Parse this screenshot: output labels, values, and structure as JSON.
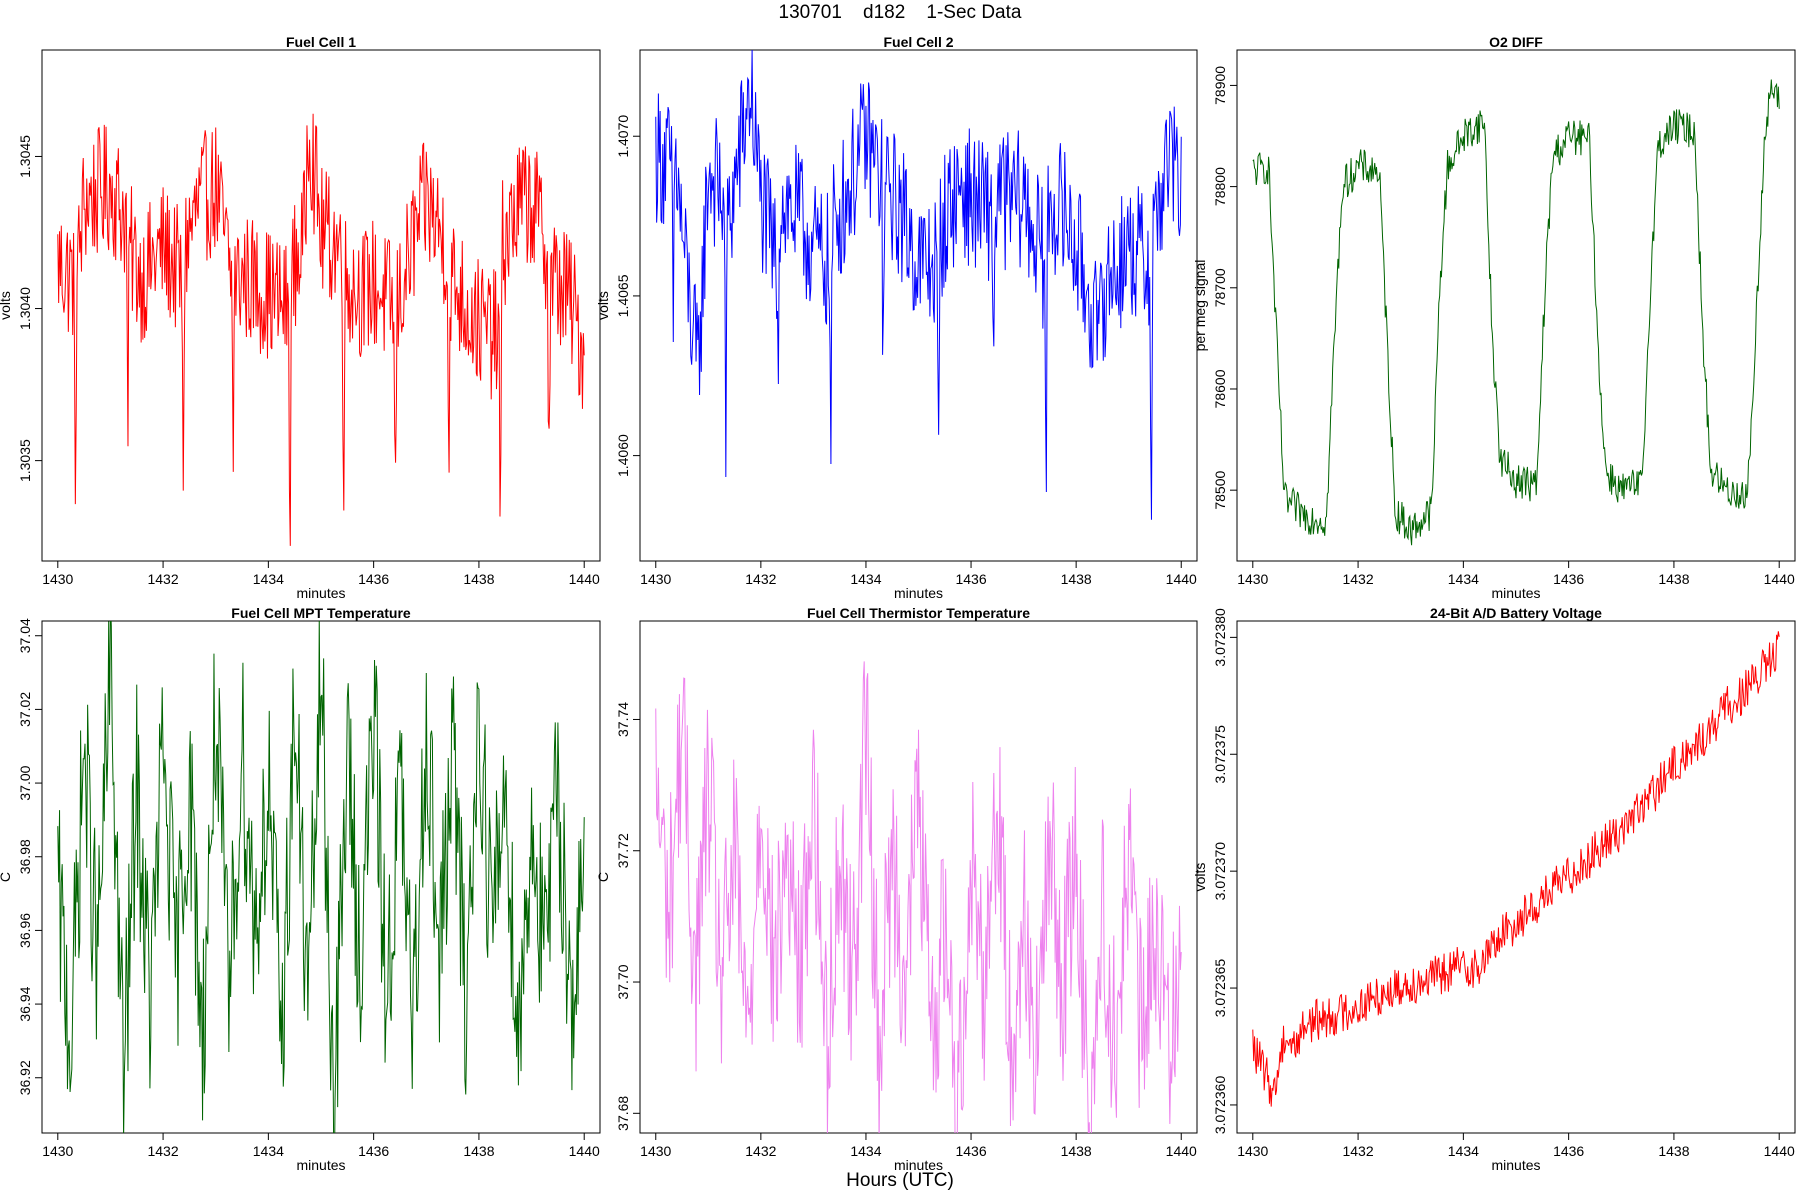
{
  "page": {
    "title": "130701    d182    1-Sec Data",
    "xlabel_overall": "Hours (UTC)"
  },
  "chart_data": [
    {
      "type": "line",
      "title": "Fuel Cell 1",
      "xlabel": "minutes",
      "ylabel": "volts",
      "color": "#ff0000",
      "xlim": [
        1429.7,
        1440.3
      ],
      "ylim": [
        1.30317,
        1.30485
      ],
      "xticks": [
        1430,
        1432,
        1434,
        1436,
        1438,
        1440
      ],
      "yticks": [
        {
          "v": 1.3035,
          "label": "1.3035"
        },
        {
          "v": 1.304,
          "label": "1.3040"
        },
        {
          "v": 1.3045,
          "label": "1.3045"
        }
      ],
      "x": [
        1430.0,
        1430.3,
        1430.33,
        1430.36,
        1430.5,
        1431.0,
        1431.3,
        1431.33,
        1431.36,
        1431.6,
        1432.0,
        1432.35,
        1432.38,
        1432.41,
        1432.7,
        1433.0,
        1433.3,
        1433.33,
        1433.36,
        1433.6,
        1434.0,
        1434.38,
        1434.41,
        1434.44,
        1434.7,
        1434.75,
        1435.0,
        1435.4,
        1435.43,
        1435.46,
        1435.8,
        1436.0,
        1436.38,
        1436.41,
        1436.44,
        1436.8,
        1437.0,
        1437.4,
        1437.43,
        1437.46,
        1437.8,
        1438.0,
        1438.38,
        1438.41,
        1438.44,
        1438.8,
        1439.0,
        1439.3,
        1439.33,
        1439.36,
        1439.7,
        1440.0
      ],
      "y": [
        1.30415,
        1.3041,
        1.30335,
        1.3041,
        1.30435,
        1.3044,
        1.3043,
        1.30357,
        1.3042,
        1.3041,
        1.3042,
        1.3041,
        1.30335,
        1.3042,
        1.30435,
        1.3044,
        1.3041,
        1.30352,
        1.3041,
        1.3041,
        1.30405,
        1.304,
        1.30325,
        1.3041,
        1.30425,
        1.30465,
        1.30425,
        1.3042,
        1.30345,
        1.3041,
        1.30405,
        1.30408,
        1.304,
        1.30323,
        1.304,
        1.30425,
        1.30435,
        1.3042,
        1.30338,
        1.3041,
        1.304,
        1.30395,
        1.3039,
        1.30318,
        1.3042,
        1.30435,
        1.30435,
        1.3042,
        1.30342,
        1.3041,
        1.30405,
        1.30385
      ]
    },
    {
      "type": "line",
      "title": "Fuel Cell 2",
      "xlabel": "minutes",
      "ylabel": "volts",
      "color": "#0000ff",
      "xlim": [
        1429.7,
        1440.3
      ],
      "ylim": [
        1.40567,
        1.40727
      ],
      "xticks": [
        1430,
        1432,
        1434,
        1436,
        1438,
        1440
      ],
      "yticks": [
        {
          "v": 1.406,
          "label": "1.4060"
        },
        {
          "v": 1.4065,
          "label": "1.4065"
        },
        {
          "v": 1.407,
          "label": "1.4070"
        }
      ],
      "x": [
        1430.0,
        1430.3,
        1430.33,
        1430.36,
        1430.5,
        1430.8,
        1431.0,
        1431.3,
        1431.33,
        1431.36,
        1431.8,
        1432.0,
        1432.3,
        1432.33,
        1432.36,
        1432.7,
        1433.0,
        1433.3,
        1433.33,
        1433.36,
        1433.7,
        1434.0,
        1434.3,
        1434.33,
        1434.36,
        1434.7,
        1435.0,
        1435.35,
        1435.38,
        1435.41,
        1435.8,
        1436.0,
        1436.4,
        1436.43,
        1436.46,
        1436.8,
        1437.0,
        1437.4,
        1437.43,
        1437.46,
        1437.8,
        1438.0,
        1438.4,
        1438.43,
        1438.46,
        1438.8,
        1439.0,
        1439.4,
        1439.43,
        1439.46,
        1439.8,
        1440.0
      ],
      "y": [
        1.40695,
        1.4069,
        1.40635,
        1.40695,
        1.4067,
        1.40625,
        1.4069,
        1.4068,
        1.40598,
        1.4067,
        1.40715,
        1.4068,
        1.4066,
        1.40635,
        1.4068,
        1.40675,
        1.40665,
        1.4066,
        1.40593,
        1.4067,
        1.40685,
        1.407,
        1.40685,
        1.40625,
        1.40685,
        1.40675,
        1.4066,
        1.4066,
        1.40583,
        1.4067,
        1.40685,
        1.4068,
        1.40675,
        1.40623,
        1.4068,
        1.4068,
        1.4068,
        1.4066,
        1.4058,
        1.4068,
        1.40675,
        1.40665,
        1.4064,
        1.40618,
        1.4065,
        1.4066,
        1.40665,
        1.4066,
        1.40582,
        1.4067,
        1.40695,
        1.4068
      ]
    },
    {
      "type": "line",
      "title": "O2 DIFF",
      "xlabel": "minutes",
      "ylabel": "per meg signal",
      "color": "#006400",
      "xlim": [
        1429.7,
        1440.3
      ],
      "ylim": [
        78430,
        78935
      ],
      "xticks": [
        1430,
        1432,
        1434,
        1436,
        1438,
        1440
      ],
      "yticks": [
        {
          "v": 78500,
          "label": "78500"
        },
        {
          "v": 78600,
          "label": "78600"
        },
        {
          "v": 78700,
          "label": "78700"
        },
        {
          "v": 78800,
          "label": "78800"
        },
        {
          "v": 78900,
          "label": "78900"
        }
      ],
      "x": [
        1430.0,
        1430.3,
        1430.45,
        1430.6,
        1431.0,
        1431.4,
        1431.55,
        1431.7,
        1432.0,
        1432.4,
        1432.55,
        1432.7,
        1433.0,
        1433.4,
        1433.55,
        1433.7,
        1434.0,
        1434.4,
        1434.55,
        1434.7,
        1435.0,
        1435.4,
        1435.55,
        1435.7,
        1436.0,
        1436.4,
        1436.55,
        1436.7,
        1437.0,
        1437.4,
        1437.55,
        1437.7,
        1438.0,
        1438.4,
        1438.55,
        1438.7,
        1439.0,
        1439.4,
        1439.55,
        1439.7,
        1439.85,
        1440.0
      ],
      "y": [
        78815,
        78820,
        78650,
        78490,
        78475,
        78470,
        78650,
        78800,
        78820,
        78815,
        78650,
        78480,
        78460,
        78480,
        78700,
        78820,
        78850,
        78865,
        78650,
        78530,
        78510,
        78505,
        78700,
        78830,
        78850,
        78845,
        78650,
        78520,
        78500,
        78505,
        78700,
        78840,
        78860,
        78855,
        78650,
        78520,
        78500,
        78495,
        78650,
        78830,
        78900,
        78880
      ]
    },
    {
      "type": "line",
      "title": "Fuel Cell MPT Temperature",
      "xlabel": "minutes",
      "ylabel": "C",
      "color": "#006400",
      "xlim": [
        1429.7,
        1440.3
      ],
      "ylim": [
        36.905,
        37.044
      ],
      "xticks": [
        1430,
        1432,
        1434,
        1436,
        1438,
        1440
      ],
      "yticks": [
        {
          "v": 36.92,
          "label": "36.92"
        },
        {
          "v": 36.94,
          "label": "36.94"
        },
        {
          "v": 36.96,
          "label": "36.96"
        },
        {
          "v": 36.98,
          "label": "36.98"
        },
        {
          "v": 37.0,
          "label": "37.00"
        },
        {
          "v": 37.02,
          "label": "37.02"
        },
        {
          "v": 37.04,
          "label": "37.04"
        }
      ],
      "x": [
        1430.0,
        1430.25,
        1430.5,
        1430.75,
        1431.0,
        1431.25,
        1431.5,
        1431.75,
        1432.0,
        1432.25,
        1432.5,
        1432.75,
        1433.0,
        1433.25,
        1433.5,
        1433.75,
        1434.0,
        1434.25,
        1434.5,
        1434.75,
        1435.0,
        1435.25,
        1435.5,
        1435.75,
        1436.0,
        1436.25,
        1436.5,
        1436.75,
        1437.0,
        1437.25,
        1437.5,
        1437.75,
        1438.0,
        1438.25,
        1438.5,
        1438.75,
        1439.0,
        1439.25,
        1439.5,
        1439.75,
        1440.0
      ],
      "y": [
        36.97,
        36.93,
        37.01,
        36.95,
        37.03,
        36.92,
        37.0,
        36.94,
        37.01,
        36.95,
        37.0,
        36.93,
        37.02,
        36.94,
        37.01,
        36.96,
        37.0,
        36.93,
        37.02,
        36.94,
        37.03,
        36.91,
        37.01,
        36.95,
        37.02,
        36.94,
        37.0,
        36.93,
        37.02,
        36.95,
        37.01,
        36.94,
        37.02,
        36.96,
        37.0,
        36.93,
        36.99,
        36.95,
        37.0,
        36.94,
        36.97
      ]
    },
    {
      "type": "line",
      "title": "Fuel Cell Thermistor Temperature",
      "xlabel": "minutes",
      "ylabel": "C",
      "color": "#ee82ee",
      "xlim": [
        1429.7,
        1440.3
      ],
      "ylim": [
        37.677,
        37.755
      ],
      "xticks": [
        1430,
        1432,
        1434,
        1436,
        1438,
        1440
      ],
      "yticks": [
        {
          "v": 37.68,
          "label": "37.68"
        },
        {
          "v": 37.7,
          "label": "37.70"
        },
        {
          "v": 37.72,
          "label": "37.72"
        },
        {
          "v": 37.74,
          "label": "37.74"
        }
      ],
      "x": [
        1430.0,
        1430.25,
        1430.5,
        1430.75,
        1431.0,
        1431.25,
        1431.5,
        1431.75,
        1432.0,
        1432.25,
        1432.5,
        1432.75,
        1433.0,
        1433.25,
        1433.5,
        1433.75,
        1434.0,
        1434.25,
        1434.5,
        1434.75,
        1435.0,
        1435.25,
        1435.5,
        1435.75,
        1436.0,
        1436.25,
        1436.5,
        1436.75,
        1437.0,
        1437.25,
        1437.5,
        1437.75,
        1438.0,
        1438.25,
        1438.5,
        1438.75,
        1439.0,
        1439.25,
        1439.5,
        1439.75,
        1440.0
      ],
      "y": [
        37.73,
        37.71,
        37.74,
        37.7,
        37.73,
        37.7,
        37.72,
        37.69,
        37.73,
        37.7,
        37.72,
        37.7,
        37.73,
        37.69,
        37.72,
        37.7,
        37.74,
        37.69,
        37.72,
        37.7,
        37.73,
        37.69,
        37.71,
        37.68,
        37.72,
        37.7,
        37.73,
        37.69,
        37.71,
        37.69,
        37.72,
        37.7,
        37.72,
        37.68,
        37.71,
        37.69,
        37.72,
        37.69,
        37.71,
        37.69,
        37.71
      ]
    },
    {
      "type": "line",
      "title": "24-Bit A/D Battery Voltage",
      "xlabel": "minutes",
      "ylabel": "volts",
      "color": "#ff0000",
      "xlim": [
        1429.7,
        1440.3
      ],
      "ylim": [
        3.0723588,
        3.0723807
      ],
      "xticks": [
        1430,
        1432,
        1434,
        1436,
        1438,
        1440
      ],
      "yticks": [
        {
          "v": 3.07236,
          "label": "3.072360"
        },
        {
          "v": 3.072365,
          "label": "3.072365"
        },
        {
          "v": 3.07237,
          "label": "3.072370"
        },
        {
          "v": 3.072375,
          "label": "3.072375"
        },
        {
          "v": 3.07238,
          "label": "3.072380"
        }
      ],
      "x": [
        1430.0,
        1430.2,
        1430.4,
        1430.6,
        1430.8,
        1431.0,
        1431.5,
        1432.0,
        1432.5,
        1433.0,
        1433.5,
        1434.0,
        1434.3,
        1434.6,
        1435.0,
        1435.5,
        1436.0,
        1436.5,
        1437.0,
        1437.5,
        1438.0,
        1438.5,
        1439.0,
        1439.5,
        1440.0
      ],
      "y": [
        3.0723625,
        3.0723615,
        3.0723605,
        3.072363,
        3.0723625,
        3.0723635,
        3.0723638,
        3.0723642,
        3.0723648,
        3.0723652,
        3.0723655,
        3.072366,
        3.0723658,
        3.072367,
        3.0723678,
        3.0723688,
        3.0723698,
        3.0723708,
        3.0723718,
        3.072373,
        3.0723745,
        3.0723755,
        3.072377,
        3.072378,
        3.0723795
      ]
    }
  ]
}
